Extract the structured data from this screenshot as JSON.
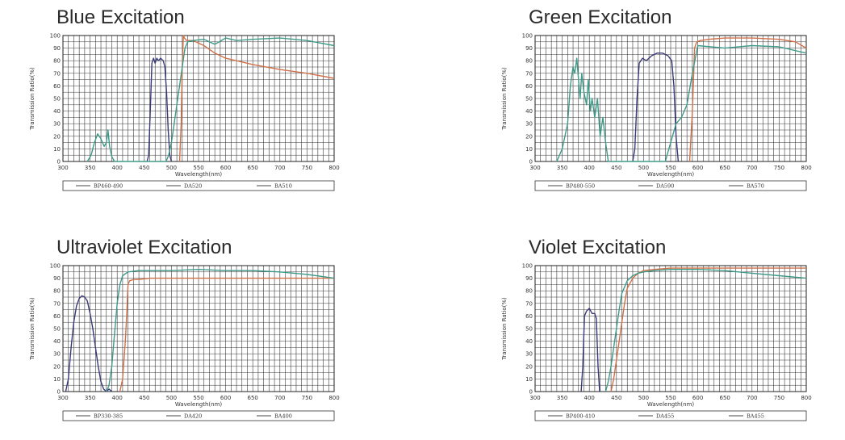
{
  "charts": [
    {
      "title": "Blue Excitation",
      "legend": [
        "BP460-490",
        "DA520",
        "BA510"
      ],
      "chart_data": {
        "type": "line",
        "xlabel": "Wavelength(nm)",
        "ylabel": "Transmission Ratio(%)",
        "xlim": [
          300,
          800
        ],
        "ylim": [
          0,
          100
        ],
        "xticks": [
          300,
          350,
          400,
          450,
          500,
          550,
          600,
          650,
          700,
          750,
          800
        ],
        "yticks": [
          0,
          10,
          20,
          30,
          40,
          50,
          60,
          70,
          80,
          90,
          100
        ],
        "grid": true,
        "legend_position": "bottom",
        "series": [
          {
            "name": "BP460-490",
            "color": "#3a3a78",
            "x": [
              455,
              458,
              461,
              464,
              467,
              470,
              473,
              476,
              480,
              485,
              488,
              491,
              494,
              497,
              500
            ],
            "y": [
              0,
              5,
              40,
              78,
              82,
              78,
              82,
              80,
              82,
              80,
              75,
              55,
              25,
              5,
              0
            ]
          },
          {
            "name": "DA520",
            "color": "#d07048",
            "x": [
              515,
              518,
              520,
              522,
              524,
              528,
              540,
              560,
              580,
              600,
              650,
              700,
              750,
              800
            ],
            "y": [
              0,
              30,
              75,
              100,
              98,
              96,
              96,
              92,
              86,
              82,
              77,
              73,
              70,
              66
            ]
          },
          {
            "name": "BA510",
            "color": "#3e9a88",
            "x": [
              345,
              352,
              358,
              364,
              370,
              376,
              380,
              383,
              386,
              390,
              395,
              490,
              495,
              500,
              505,
              510,
              515,
              520,
              525,
              530,
              540,
              560,
              580,
              600,
              620,
              650,
              700,
              750,
              800
            ],
            "y": [
              0,
              5,
              15,
              22,
              18,
              12,
              15,
              25,
              12,
              4,
              0,
              0,
              5,
              15,
              30,
              45,
              60,
              75,
              90,
              95,
              96,
              97,
              93,
              98,
              96,
              97,
              98,
              96,
              92
            ]
          }
        ]
      }
    },
    {
      "title": "Green Excitation",
      "legend": [
        "BP480-550",
        "DA590",
        "BA570"
      ],
      "chart_data": {
        "type": "line",
        "xlabel": "Wavelength(nm)",
        "ylabel": "Transmission Ratio(%)",
        "xlim": [
          300,
          800
        ],
        "ylim": [
          0,
          100
        ],
        "xticks": [
          300,
          350,
          400,
          450,
          500,
          550,
          600,
          650,
          700,
          750,
          800
        ],
        "yticks": [
          0,
          10,
          20,
          30,
          40,
          50,
          60,
          70,
          80,
          90,
          100
        ],
        "grid": true,
        "legend_position": "bottom",
        "series": [
          {
            "name": "BP480-550",
            "color": "#3a3a78",
            "x": [
              480,
              484,
              488,
              492,
              498,
              505,
              515,
              525,
              535,
              545,
              552,
              556,
              560,
              564
            ],
            "y": [
              0,
              10,
              50,
              78,
              82,
              80,
              84,
              86,
              86,
              84,
              80,
              60,
              20,
              0
            ]
          },
          {
            "name": "DA590",
            "color": "#d07048",
            "x": [
              585,
              590,
              594,
              598,
              605,
              620,
              650,
              700,
              750,
              780,
              800
            ],
            "y": [
              0,
              40,
              90,
              95,
              96,
              97,
              98,
              98,
              97,
              95,
              90
            ]
          },
          {
            "name": "BA570",
            "color": "#3e9a88",
            "x": [
              340,
              350,
              360,
              365,
              370,
              373,
              377,
              380,
              383,
              386,
              390,
              395,
              398,
              402,
              405,
              410,
              415,
              420,
              425,
              430,
              435,
              540,
              550,
              560,
              570,
              580,
              590,
              600,
              650,
              700,
              750,
              800
            ],
            "y": [
              0,
              10,
              30,
              60,
              75,
              70,
              82,
              65,
              50,
              70,
              55,
              45,
              65,
              40,
              50,
              35,
              50,
              20,
              35,
              15,
              0,
              0,
              15,
              30,
              35,
              45,
              70,
              92,
              90,
              92,
              91,
              86
            ]
          }
        ]
      }
    },
    {
      "title": "Ultraviolet Excitation",
      "legend": [
        "BP330-385",
        "DA420",
        "BA400"
      ],
      "chart_data": {
        "type": "line",
        "xlabel": "Wavelength(nm)",
        "ylabel": "Transmission Ratio(%)",
        "xlim": [
          300,
          800
        ],
        "ylim": [
          0,
          100
        ],
        "xticks": [
          300,
          350,
          400,
          450,
          500,
          550,
          600,
          650,
          700,
          750,
          800
        ],
        "yticks": [
          0,
          10,
          20,
          30,
          40,
          50,
          60,
          70,
          80,
          90,
          100
        ],
        "grid": true,
        "legend_position": "bottom",
        "series": [
          {
            "name": "BP330-385",
            "color": "#3a3a78",
            "x": [
              305,
              310,
              315,
              320,
              325,
              330,
              335,
              340,
              345,
              350,
              355,
              360,
              365,
              370,
              375,
              380,
              385,
              390
            ],
            "y": [
              0,
              10,
              35,
              55,
              68,
              74,
              76,
              75,
              72,
              62,
              50,
              35,
              20,
              8,
              2,
              0,
              2,
              0
            ]
          },
          {
            "name": "DA420",
            "color": "#d07048",
            "x": [
              405,
              410,
              415,
              418,
              420,
              423,
              430,
              440,
              460,
              500,
              550,
              600,
              650,
              700,
              750,
              800
            ],
            "y": [
              0,
              10,
              40,
              65,
              85,
              88,
              89,
              89,
              90,
              90,
              90,
              90,
              90,
              90,
              90,
              90
            ]
          },
          {
            "name": "BA400",
            "color": "#3e9a88",
            "x": [
              380,
              385,
              390,
              395,
              400,
              405,
              410,
              420,
              440,
              460,
              500,
              550,
              600,
              650,
              700,
              750,
              800
            ],
            "y": [
              0,
              5,
              20,
              45,
              70,
              85,
              92,
              95,
              96,
              96,
              96,
              97,
              96,
              96,
              95,
              93,
              90
            ]
          }
        ]
      }
    },
    {
      "title": "Violet Excitation",
      "legend": [
        "BP400-410",
        "DA455",
        "BA455"
      ],
      "chart_data": {
        "type": "line",
        "xlabel": "Wavelength(nm)",
        "ylabel": "Transmission Ratio(%)",
        "xlim": [
          300,
          800
        ],
        "ylim": [
          0,
          100
        ],
        "xticks": [
          300,
          350,
          400,
          450,
          500,
          550,
          600,
          650,
          700,
          750,
          800
        ],
        "yticks": [
          0,
          10,
          20,
          30,
          40,
          50,
          60,
          70,
          80,
          90,
          100
        ],
        "grid": true,
        "legend_position": "bottom",
        "series": [
          {
            "name": "BP400-410",
            "color": "#3a3a78",
            "x": [
              385,
              388,
              391,
              395,
              400,
              405,
              410,
              413,
              416,
              419
            ],
            "y": [
              0,
              20,
              60,
              64,
              66,
              62,
              62,
              58,
              20,
              0
            ]
          },
          {
            "name": "DA455",
            "color": "#d07048",
            "x": [
              440,
              445,
              450,
              455,
              460,
              465,
              470,
              480,
              490,
              500,
              520,
              550,
              600,
              650,
              700,
              750,
              800
            ],
            "y": [
              0,
              10,
              25,
              40,
              55,
              70,
              82,
              90,
              94,
              96,
              97,
              98,
              98,
              98,
              98,
              98,
              98
            ]
          },
          {
            "name": "BA455",
            "color": "#3e9a88",
            "x": [
              430,
              435,
              440,
              445,
              450,
              455,
              460,
              470,
              480,
              490,
              500,
              520,
              550,
              600,
              650,
              700,
              750,
              800
            ],
            "y": [
              0,
              8,
              20,
              35,
              50,
              65,
              78,
              88,
              92,
              94,
              95,
              96,
              97,
              97,
              96,
              94,
              92,
              90
            ]
          }
        ]
      }
    }
  ]
}
